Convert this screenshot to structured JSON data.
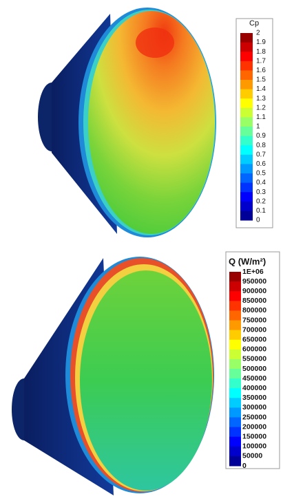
{
  "panels": [
    {
      "title": "Cp",
      "labels": [
        "2",
        "1.9",
        "1.8",
        "1.7",
        "1.6",
        "1.5",
        "1.4",
        "1.3",
        "1.2",
        "1.1",
        "1",
        "0.9",
        "0.8",
        "0.7",
        "0.6",
        "0.5",
        "0.4",
        "0.3",
        "0.2",
        "0.1",
        "0"
      ]
    },
    {
      "title": "Q (W/m²)",
      "labels": [
        "1E+06",
        "950000",
        "900000",
        "850000",
        "800000",
        "750000",
        "700000",
        "650000",
        "600000",
        "550000",
        "500000",
        "450000",
        "400000",
        "350000",
        "300000",
        "250000",
        "200000",
        "150000",
        "100000",
        "50000",
        "0"
      ]
    }
  ]
}
